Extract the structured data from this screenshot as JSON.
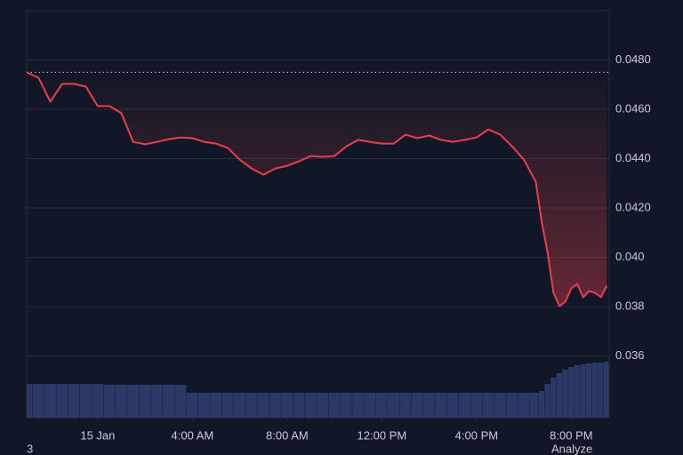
{
  "chart_data": {
    "type": "line",
    "x": [
      -3,
      -2.5,
      -2,
      -1.5,
      -1,
      -0.5,
      0,
      0.5,
      1,
      1.5,
      2,
      2.5,
      3,
      3.5,
      4,
      4.5,
      5,
      5.5,
      6,
      6.5,
      7,
      7.5,
      8,
      8.5,
      9,
      9.5,
      10,
      10.5,
      11,
      11.5,
      12,
      12.5,
      13,
      13.5,
      14,
      14.5,
      15,
      15.5,
      16,
      16.5,
      17,
      17.5,
      18,
      18.5,
      18.75,
      19,
      19.25,
      19.5,
      19.75,
      20,
      20.25,
      20.5,
      20.75,
      21,
      21.25,
      21.5
    ],
    "values": [
      0.0475,
      0.04728,
      0.04631,
      0.04703,
      0.04703,
      0.04692,
      0.04613,
      0.04613,
      0.04584,
      0.04468,
      0.04458,
      0.04468,
      0.04479,
      0.04486,
      0.04483,
      0.04468,
      0.04461,
      0.04443,
      0.04396,
      0.0436,
      0.04335,
      0.0436,
      0.04371,
      0.04389,
      0.04411,
      0.04407,
      0.04411,
      0.0445,
      0.04476,
      0.04468,
      0.04461,
      0.04461,
      0.04497,
      0.04483,
      0.04494,
      0.04476,
      0.04468,
      0.04476,
      0.04486,
      0.04519,
      0.04497,
      0.0445,
      0.04396,
      0.04306,
      0.04144,
      0.04018,
      0.03856,
      0.03802,
      0.0382,
      0.03874,
      0.03892,
      0.03838,
      0.03863,
      0.03856,
      0.03838,
      0.03885
    ],
    "color": "#e8404a",
    "reference": 0.0475,
    "volume": [
      38,
      38,
      38,
      38,
      38,
      38,
      38,
      37,
      37,
      37,
      37,
      37,
      37,
      37,
      28,
      28,
      28,
      28,
      28,
      28,
      28,
      28,
      28,
      28,
      28,
      28,
      28,
      28,
      28,
      28,
      28,
      28,
      28,
      28,
      28,
      28,
      28,
      28,
      28,
      28,
      28,
      28,
      28,
      28,
      30,
      38,
      45,
      50,
      54,
      57,
      59,
      60,
      61,
      62,
      62,
      63
    ],
    "volume_color": "#2c3966",
    "volume_ylim": [
      0,
      100
    ],
    "xlim": [
      -3,
      21.6
    ],
    "xticks": [
      {
        "value": 0,
        "label": "15 Jan"
      },
      {
        "value": 4,
        "label": "4:00 AM"
      },
      {
        "value": 8,
        "label": "8:00 AM"
      },
      {
        "value": 12,
        "label": "12:00 PM"
      },
      {
        "value": 16,
        "label": "4:00 PM"
      },
      {
        "value": 20,
        "label": "8:00 PM"
      }
    ],
    "ylim": [
      0.0335,
      0.05
    ],
    "yticks": [
      {
        "value": 0.048,
        "label": "0.0480"
      },
      {
        "value": 0.046,
        "label": "0.0460"
      },
      {
        "value": 0.044,
        "label": "0.0440"
      },
      {
        "value": 0.042,
        "label": "0.0420"
      },
      {
        "value": 0.04,
        "label": "0.040"
      },
      0.038,
      0.036
    ],
    "grid": true
  },
  "footer": {
    "left": "3",
    "right": "Analyze"
  }
}
